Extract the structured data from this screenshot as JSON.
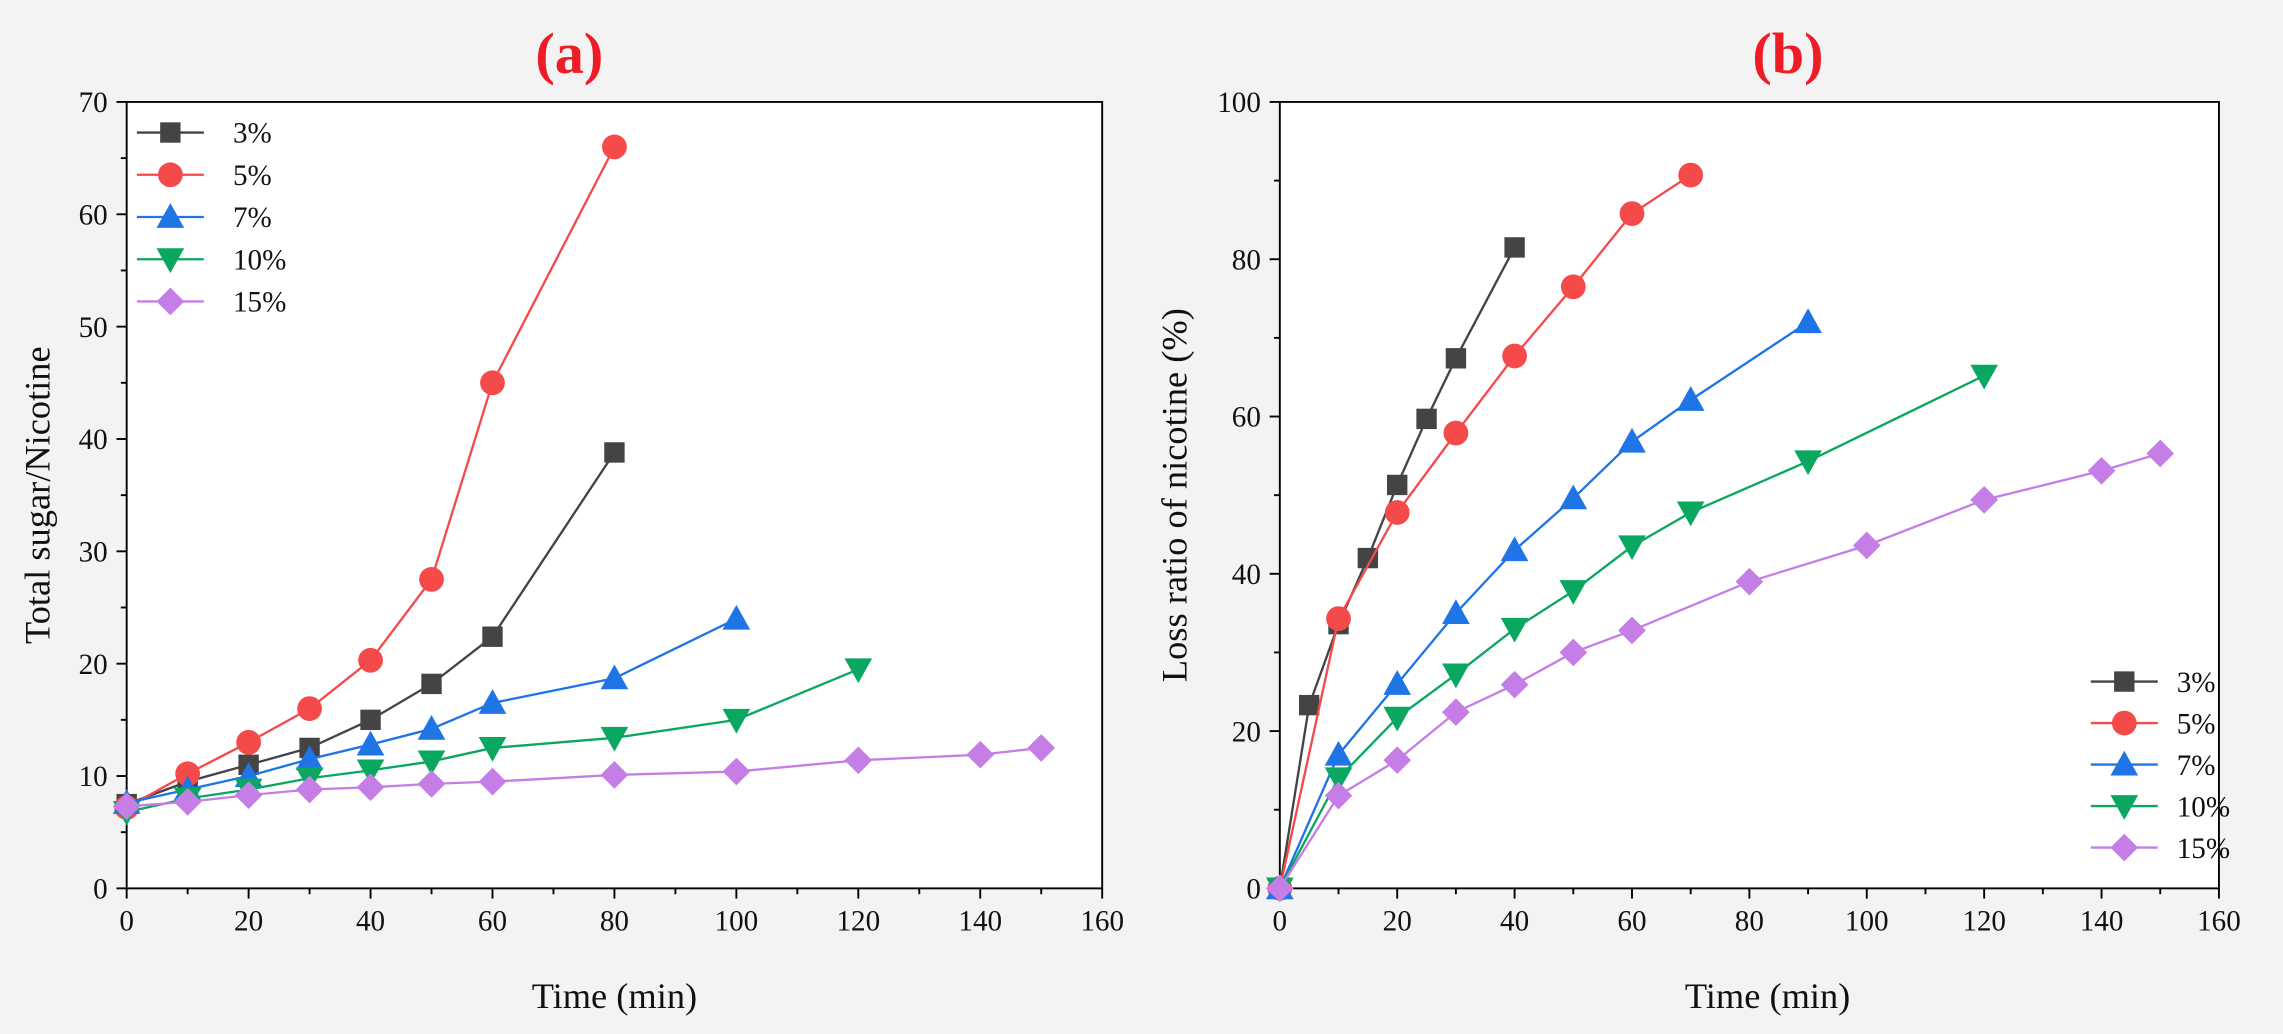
{
  "colors": {
    "background": "#f3f3f3",
    "title": "#ee1c25",
    "series": {
      "3%": "#444444",
      "5%": "#f44a4a",
      "7%": "#1f74e6",
      "10%": "#0aa760",
      "15%": "#c47ee6"
    }
  },
  "chart_data": [
    {
      "type": "line",
      "panel": "(a)",
      "title": "(a)",
      "xlabel": "Time (min)",
      "ylabel": "Total sugar/Nicotine",
      "xlim": [
        0,
        160
      ],
      "ylim": [
        0,
        70
      ],
      "xticks": [
        0,
        20,
        40,
        60,
        80,
        100,
        120,
        140,
        160
      ],
      "yticks": [
        0,
        10,
        20,
        30,
        40,
        50,
        60,
        70
      ],
      "legend_position": "top-left",
      "series": [
        {
          "name": "3%",
          "marker": "square",
          "color": "#444444",
          "x": [
            0,
            10,
            20,
            30,
            40,
            50,
            60,
            80
          ],
          "y": [
            7.5,
            9.5,
            11.0,
            12.5,
            15.0,
            18.2,
            22.4,
            38.8
          ]
        },
        {
          "name": "5%",
          "marker": "circle",
          "color": "#f44a4a",
          "x": [
            0,
            10,
            20,
            30,
            40,
            50,
            60,
            80
          ],
          "y": [
            7.2,
            10.2,
            13.0,
            16.0,
            20.3,
            27.5,
            45.0,
            66.0
          ]
        },
        {
          "name": "7%",
          "marker": "triangle-up",
          "color": "#1f74e6",
          "x": [
            0,
            10,
            20,
            30,
            40,
            50,
            60,
            80,
            100
          ],
          "y": [
            7.6,
            8.8,
            10.0,
            11.5,
            12.8,
            14.2,
            16.5,
            18.7,
            24.0
          ]
        },
        {
          "name": "10%",
          "marker": "triangle-down",
          "color": "#0aa760",
          "x": [
            0,
            10,
            20,
            30,
            40,
            50,
            60,
            80,
            100,
            120
          ],
          "y": [
            6.8,
            8.0,
            8.8,
            9.8,
            10.5,
            11.3,
            12.5,
            13.4,
            15.0,
            19.5
          ]
        },
        {
          "name": "15%",
          "marker": "diamond",
          "color": "#c47ee6",
          "x": [
            0,
            10,
            20,
            30,
            40,
            50,
            60,
            80,
            100,
            120,
            140,
            150
          ],
          "y": [
            7.3,
            7.7,
            8.3,
            8.8,
            9.0,
            9.3,
            9.5,
            10.1,
            10.4,
            11.4,
            11.9,
            12.5
          ]
        }
      ]
    },
    {
      "type": "line",
      "panel": "(b)",
      "title": "(b)",
      "xlabel": "Time (min)",
      "ylabel": "Loss ratio of nicotine (%)",
      "xlim": [
        0,
        160
      ],
      "ylim": [
        0,
        100
      ],
      "xticks": [
        0,
        20,
        40,
        60,
        80,
        100,
        120,
        140,
        160
      ],
      "yticks": [
        0,
        20,
        40,
        60,
        80,
        100
      ],
      "legend_position": "bottom-right",
      "series": [
        {
          "name": "3%",
          "marker": "square",
          "color": "#444444",
          "x": [
            0,
            5,
            10,
            15,
            20,
            25,
            30,
            40
          ],
          "y": [
            0,
            23.3,
            33.6,
            42.0,
            51.3,
            59.7,
            67.4,
            81.5
          ]
        },
        {
          "name": "5%",
          "marker": "circle",
          "color": "#f44a4a",
          "x": [
            0,
            10,
            20,
            30,
            40,
            50,
            60,
            70
          ],
          "y": [
            0,
            34.3,
            47.8,
            57.9,
            67.7,
            76.5,
            85.8,
            90.7
          ]
        },
        {
          "name": "7%",
          "marker": "triangle-up",
          "color": "#1f74e6",
          "x": [
            0,
            10,
            20,
            30,
            40,
            50,
            60,
            70,
            90
          ],
          "y": [
            0,
            17.0,
            26.0,
            35.0,
            43.0,
            49.6,
            56.8,
            62.1,
            72.0
          ]
        },
        {
          "name": "10%",
          "marker": "triangle-down",
          "color": "#0aa760",
          "x": [
            0,
            10,
            20,
            30,
            40,
            50,
            60,
            70,
            90,
            120
          ],
          "y": [
            0,
            14.0,
            21.7,
            27.2,
            33.0,
            37.8,
            43.5,
            47.8,
            54.3,
            65.2
          ]
        },
        {
          "name": "15%",
          "marker": "diamond",
          "color": "#c47ee6",
          "x": [
            0,
            10,
            20,
            30,
            40,
            50,
            60,
            80,
            100,
            120,
            140,
            150
          ],
          "y": [
            0,
            11.8,
            16.3,
            22.4,
            25.9,
            30.0,
            32.8,
            39.0,
            43.6,
            49.4,
            53.1,
            55.3
          ]
        }
      ]
    }
  ]
}
